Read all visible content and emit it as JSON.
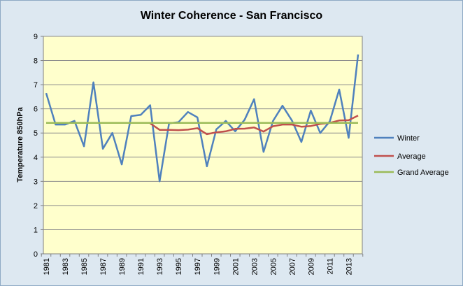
{
  "chart_data": {
    "type": "line",
    "title": "Winter Coherence - San Francisco",
    "xlabel": "",
    "ylabel": "Temperature 850hPa",
    "ylim": [
      0,
      9
    ],
    "yticks": [
      0,
      1,
      2,
      3,
      4,
      5,
      6,
      7,
      8,
      9
    ],
    "xlim": [
      1981,
      2014
    ],
    "xticks": [
      1981,
      1983,
      1985,
      1987,
      1989,
      1991,
      1993,
      1995,
      1997,
      1999,
      2001,
      2003,
      2005,
      2007,
      2009,
      2011,
      2013
    ],
    "grid": "horizontal",
    "legend_position": "right",
    "plot_background": "#ffffcc",
    "series": [
      {
        "name": "Winter",
        "color": "#4f81bd",
        "x": [
          1981,
          1982,
          1983,
          1984,
          1985,
          1986,
          1987,
          1988,
          1989,
          1990,
          1991,
          1992,
          1993,
          1994,
          1995,
          1996,
          1997,
          1998,
          1999,
          2000,
          2001,
          2002,
          2003,
          2004,
          2005,
          2006,
          2007,
          2008,
          2009,
          2010,
          2011,
          2012,
          2013,
          2014
        ],
        "values": [
          6.65,
          5.35,
          5.35,
          5.5,
          4.45,
          7.1,
          4.35,
          5.0,
          3.7,
          5.7,
          5.75,
          6.15,
          3.0,
          5.4,
          5.45,
          5.87,
          5.65,
          3.62,
          5.15,
          5.5,
          5.07,
          5.55,
          6.4,
          4.22,
          5.5,
          6.13,
          5.52,
          4.63,
          5.93,
          5.0,
          5.48,
          6.8,
          4.8,
          8.25
        ]
      },
      {
        "name": "Average",
        "color": "#c0504d",
        "x": [
          1992,
          1993,
          1994,
          1995,
          1996,
          1997,
          1998,
          1999,
          2000,
          2001,
          2002,
          2003,
          2004,
          2005,
          2006,
          2007,
          2008,
          2009,
          2010,
          2011,
          2012,
          2013,
          2014
        ],
        "values": [
          5.4,
          5.13,
          5.13,
          5.12,
          5.14,
          5.2,
          4.95,
          5.03,
          5.07,
          5.17,
          5.18,
          5.23,
          5.06,
          5.28,
          5.35,
          5.35,
          5.26,
          5.29,
          5.38,
          5.42,
          5.52,
          5.53,
          5.72
        ]
      },
      {
        "name": "Grand Average",
        "color": "#9bbb59",
        "x": [
          1981,
          2014
        ],
        "values": [
          5.42,
          5.42
        ]
      }
    ]
  }
}
